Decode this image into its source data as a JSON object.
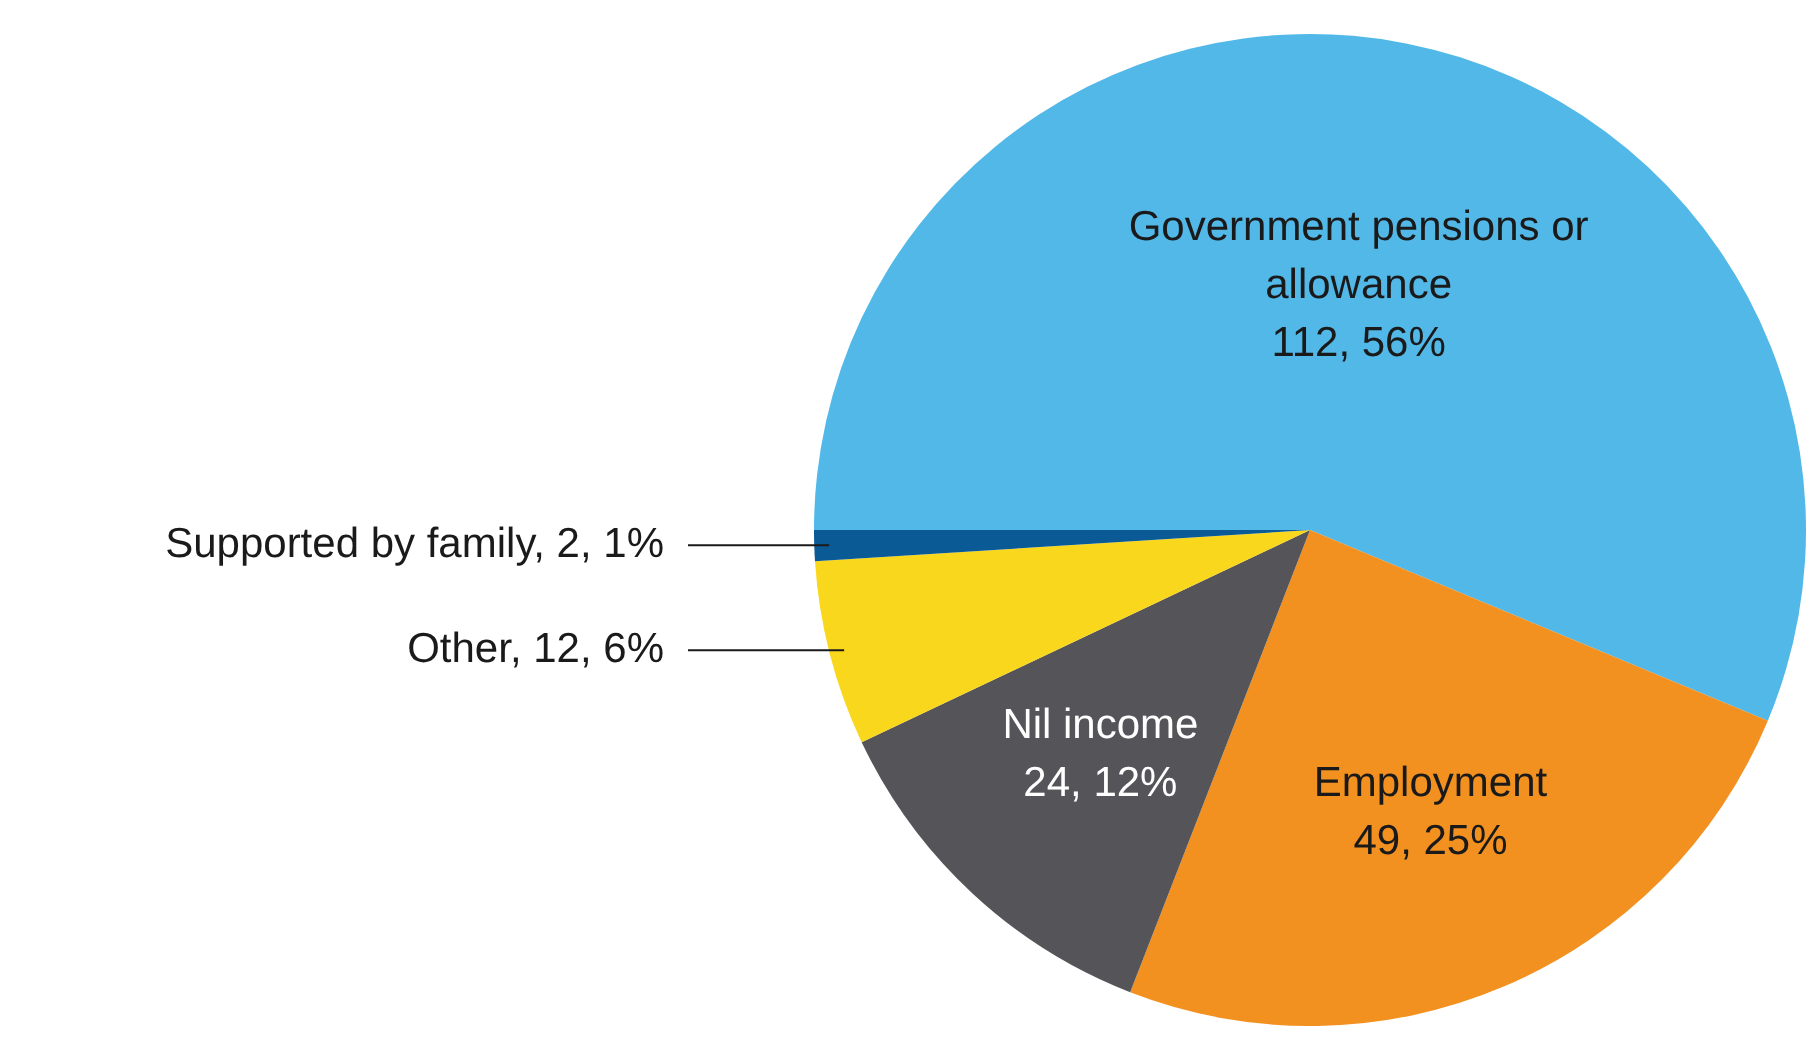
{
  "chart_data": {
    "type": "pie",
    "categories": [
      "Government pensions or allowance",
      "Employment",
      "Nil income",
      "Other",
      "Supported by family"
    ],
    "values": [
      112,
      49,
      24,
      12,
      2
    ],
    "value_labels": [
      "112, 56%",
      "49, 25%",
      "24, 12%",
      "12, 6%",
      "2, 1%"
    ],
    "colors": [
      "#52b8e8",
      "#f29120",
      "#545459",
      "#f9d71c",
      "#0a5a96"
    ],
    "legend": false
  }
}
